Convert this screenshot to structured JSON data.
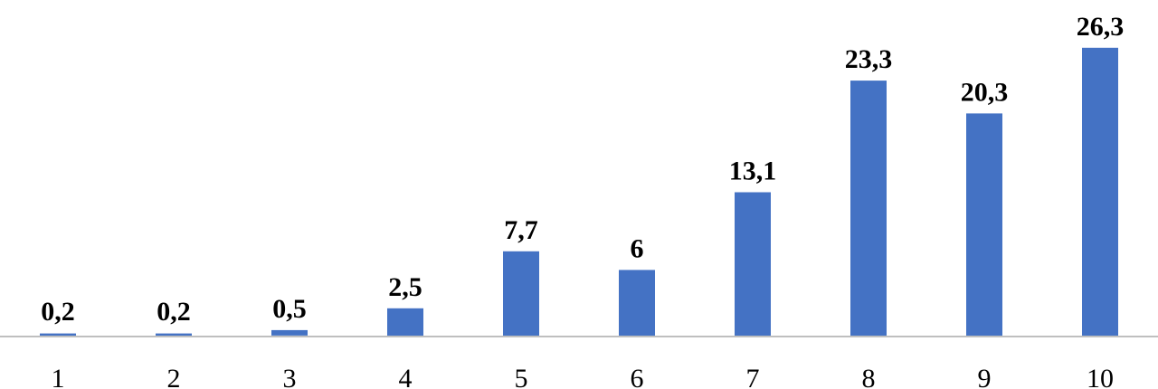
{
  "chart_data": {
    "type": "bar",
    "categories": [
      "1",
      "2",
      "3",
      "4",
      "5",
      "6",
      "7",
      "8",
      "9",
      "10"
    ],
    "values": [
      0.2,
      0.2,
      0.5,
      2.5,
      7.7,
      6,
      13.1,
      23.3,
      20.3,
      26.3
    ],
    "data_labels": [
      "0,2",
      "0,2",
      "0,5",
      "2,5",
      "7,7",
      "6",
      "13,1",
      "23,3",
      "20,3",
      "26,3"
    ],
    "title": "",
    "xlabel": "",
    "ylabel": "",
    "ylim": [
      0,
      27
    ],
    "grid": false,
    "legend": "none",
    "colors": {
      "bar": "#4472C4",
      "axis": "#BFBFBF",
      "text": "#000000"
    }
  }
}
